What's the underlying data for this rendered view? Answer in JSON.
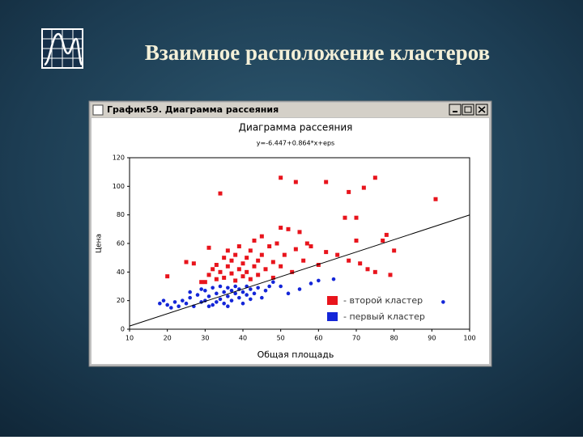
{
  "slide_title": "Взаимное расположение кластеров",
  "window_title": "График59. Диаграмма рассеяния",
  "chart_data": {
    "type": "scatter",
    "title": "Диаграмма рассеяния",
    "subtitle": "y=-6.447+0.864*x+eps",
    "x_label": "Общая площадь",
    "y_label": "Цена",
    "xlim": [
      10,
      100
    ],
    "ylim": [
      0,
      120
    ],
    "xticks": [
      10,
      20,
      30,
      40,
      50,
      60,
      70,
      80,
      90,
      100
    ],
    "yticks": [
      0,
      20,
      40,
      60,
      80,
      100,
      120
    ],
    "fit": {
      "intercept": -6.447,
      "slope": 0.864,
      "color": "#000000"
    },
    "legend": "lower-right",
    "series": [
      {
        "name": "- второй кластер",
        "color": "#e8141c",
        "marker": "square",
        "x": [
          30,
          31,
          32,
          33,
          33,
          34,
          35,
          35,
          36,
          36,
          37,
          37,
          38,
          38,
          39,
          39,
          40,
          40,
          41,
          41,
          42,
          42,
          43,
          43,
          44,
          44,
          45,
          45,
          46,
          47,
          48,
          48,
          49,
          50,
          51,
          52,
          53,
          54,
          55,
          56,
          57,
          58,
          60,
          62,
          65,
          68,
          71,
          73,
          75,
          79,
          80,
          67,
          70,
          70,
          77,
          78,
          50,
          34,
          50,
          54,
          62,
          75,
          72,
          68,
          91,
          20,
          27,
          25,
          31,
          29
        ],
        "values": [
          33,
          38,
          42,
          35,
          45,
          40,
          50,
          36,
          44,
          55,
          39,
          48,
          34,
          52,
          42,
          58,
          37,
          46,
          50,
          40,
          35,
          55,
          44,
          62,
          38,
          48,
          52,
          65,
          42,
          58,
          36,
          47,
          60,
          44,
          52,
          70,
          40,
          56,
          68,
          48,
          60,
          58,
          45,
          54,
          52,
          48,
          46,
          42,
          40,
          38,
          55,
          78,
          78,
          62,
          62,
          66,
          71,
          95,
          106,
          103,
          103,
          106,
          99,
          96,
          91,
          37,
          46,
          47,
          57,
          33
        ]
      },
      {
        "name": "- первый кластер",
        "color": "#1426d8",
        "marker": "circle",
        "x": [
          18,
          19,
          20,
          21,
          22,
          23,
          24,
          25,
          26,
          27,
          28,
          29,
          30,
          30,
          31,
          32,
          32,
          33,
          34,
          34,
          35,
          35,
          36,
          36,
          37,
          37,
          38,
          38,
          39,
          39,
          40,
          40,
          41,
          41,
          42,
          42,
          43,
          44,
          45,
          46,
          47,
          48,
          50,
          52,
          55,
          58,
          60,
          64,
          93,
          31,
          33,
          36,
          29,
          26
        ],
        "values": [
          18,
          20,
          17,
          15,
          19,
          16,
          20,
          18,
          22,
          16,
          24,
          19,
          27,
          20,
          23,
          17,
          29,
          25,
          21,
          30,
          18,
          26,
          23,
          29,
          20,
          27,
          25,
          30,
          22,
          28,
          18,
          26,
          24,
          30,
          21,
          28,
          25,
          29,
          22,
          27,
          30,
          33,
          30,
          25,
          28,
          32,
          34,
          35,
          19,
          16,
          19,
          16,
          28,
          26
        ]
      }
    ]
  }
}
